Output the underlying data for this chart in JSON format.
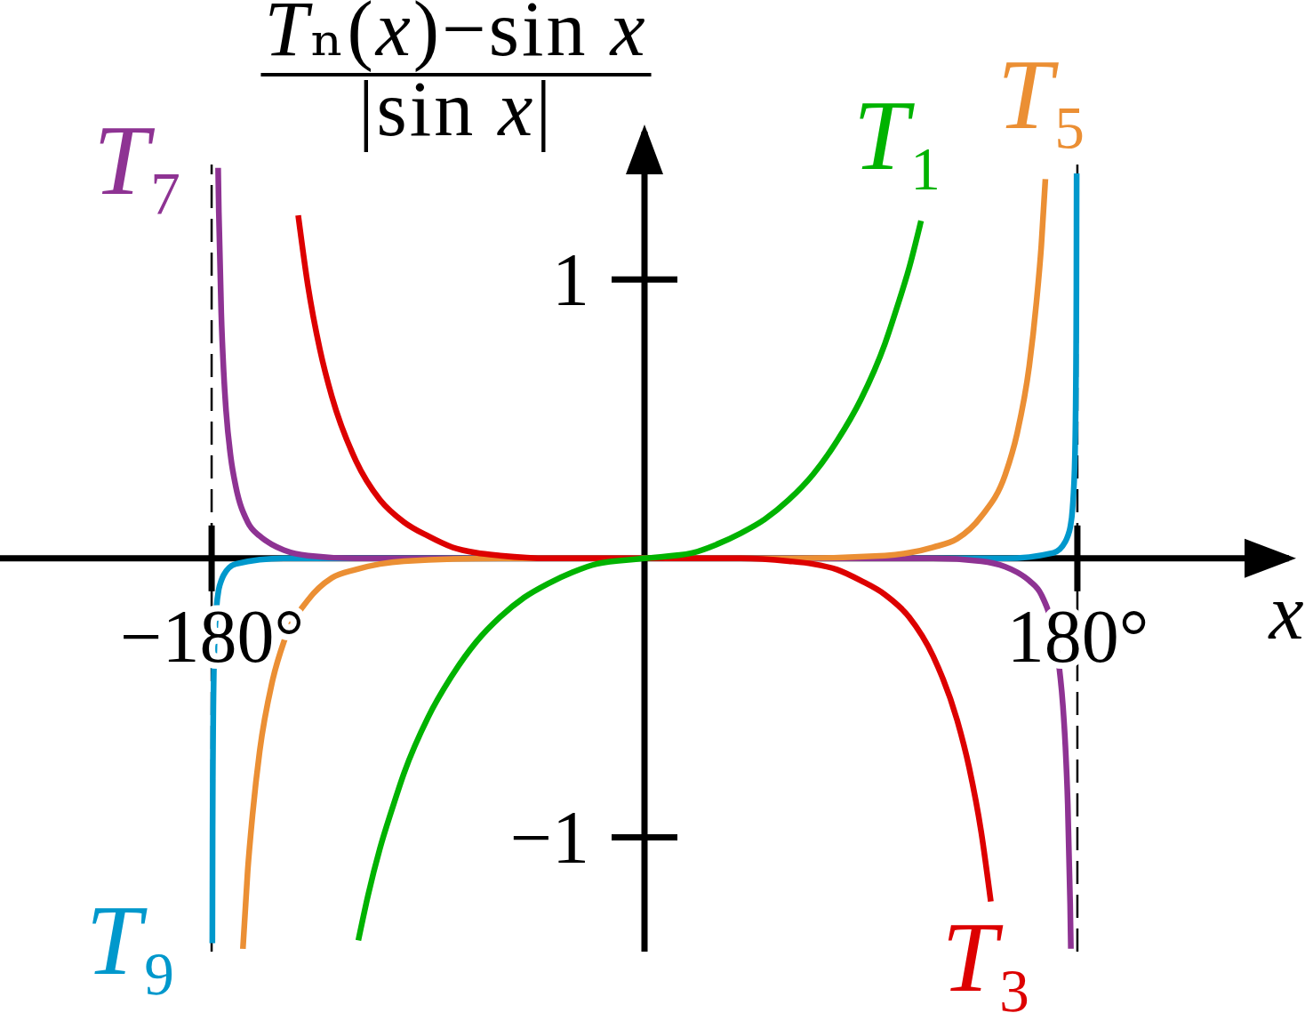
{
  "chart_data": {
    "type": "line",
    "xlabel": "x",
    "ylabel": "Tₙ(x)−sin x\n|sin x|",
    "xlim": [
      -268,
      268
    ],
    "ylim": [
      -1.41,
      1.53
    ],
    "xticks": [
      {
        "value": -180,
        "label": "−180°"
      },
      {
        "value": 180,
        "label": "180°"
      }
    ],
    "yticks": [
      {
        "value": -1,
        "label": "−1"
      },
      1
    ],
    "line_style": "solid",
    "ref_lines": [
      {
        "axis": "x",
        "value": -180,
        "color": "#000000",
        "line_style": "dashed"
      },
      {
        "axis": "x",
        "value": 180,
        "color": "#000000",
        "line_style": "dashed"
      }
    ],
    "series": [
      {
        "name": "T₁",
        "color": "#00b300",
        "x": [
          -119,
          -115,
          -110,
          -105,
          -100,
          -90,
          -80,
          -70,
          -60,
          -50,
          -40,
          -30,
          -20,
          0,
          20,
          30,
          40,
          50,
          60,
          70,
          80,
          90,
          100,
          105,
          110,
          115
        ],
        "values": [
          -1.37,
          -1.21,
          -1.04,
          -0.9,
          -0.77,
          -0.57,
          -0.42,
          -0.3,
          -0.21,
          -0.14,
          -0.09,
          -0.05,
          -0.02,
          0,
          0.02,
          0.05,
          0.09,
          0.14,
          0.21,
          0.3,
          0.42,
          0.57,
          0.77,
          0.9,
          1.04,
          1.21
        ]
      },
      {
        "name": "T₃",
        "color": "#dd0000",
        "x": [
          -144,
          -140,
          -135,
          -130,
          -120,
          -110,
          -100,
          -90,
          -80,
          -70,
          -60,
          -40,
          -20,
          0,
          20,
          40,
          60,
          70,
          80,
          90,
          100,
          110,
          120,
          130,
          135,
          140,
          144
        ],
        "values": [
          1.23,
          0.98,
          0.75,
          0.58,
          0.35,
          0.21,
          0.13,
          0.08,
          0.04,
          0.02,
          0.01,
          0,
          0,
          0,
          0,
          0,
          -0.01,
          -0.02,
          -0.04,
          -0.08,
          -0.13,
          -0.21,
          -0.35,
          -0.58,
          -0.75,
          -0.98,
          -1.23
        ]
      },
      {
        "name": "T₅",
        "color": "#eb8f34",
        "x": [
          -167,
          -165,
          -163,
          -160,
          -155,
          -150,
          -140,
          -130,
          -120,
          -110,
          -100,
          -60,
          -30,
          0,
          30,
          60,
          100,
          110,
          120,
          130,
          140,
          150,
          155,
          160,
          163,
          165,
          166.7
        ],
        "values": [
          -1.4,
          -1.12,
          -0.92,
          -0.69,
          -0.45,
          -0.3,
          -0.15,
          -0.07,
          -0.04,
          -0.02,
          -0.01,
          0,
          0,
          0,
          0,
          0,
          0.01,
          0.02,
          0.04,
          0.07,
          0.15,
          0.3,
          0.45,
          0.69,
          0.92,
          1.12,
          1.36
        ]
      },
      {
        "name": "T₇",
        "color": "#8e3393",
        "x": [
          -177.3,
          -177,
          -176,
          -175,
          -174,
          -172,
          -170,
          -165,
          -160,
          -155,
          -150,
          -140,
          -120,
          -90,
          -60,
          -30,
          0,
          30,
          60,
          90,
          120,
          140,
          150,
          155,
          160,
          165,
          170,
          172,
          174,
          175,
          176,
          177,
          177.3
        ],
        "values": [
          1.4,
          1.24,
          0.88,
          0.67,
          0.53,
          0.36,
          0.26,
          0.13,
          0.08,
          0.05,
          0.03,
          0.01,
          0,
          0,
          0,
          0,
          0,
          0,
          0,
          0,
          0,
          -0.01,
          -0.03,
          -0.05,
          -0.08,
          -0.13,
          -0.26,
          -0.36,
          -0.53,
          -0.67,
          -0.88,
          -1.24,
          -1.4
        ]
      },
      {
        "name": "T₉",
        "color": "#0098cc",
        "x": [
          -179.7,
          -179.6,
          -179.5,
          -179,
          -178,
          -177,
          -176,
          -175,
          -170,
          -150,
          -120,
          -90,
          -60,
          -30,
          0,
          30,
          60,
          90,
          120,
          150,
          170,
          175,
          176,
          177,
          178,
          179,
          179.5,
          179.6,
          179.7
        ],
        "values": [
          -1.38,
          -0.97,
          -0.77,
          -0.37,
          -0.18,
          -0.11,
          -0.08,
          -0.06,
          -0.02,
          0,
          0,
          0,
          0,
          0,
          0,
          0,
          0,
          0,
          0,
          0,
          0.02,
          0.06,
          0.08,
          0.11,
          0.18,
          0.37,
          0.77,
          0.97,
          1.38
        ]
      }
    ]
  }
}
